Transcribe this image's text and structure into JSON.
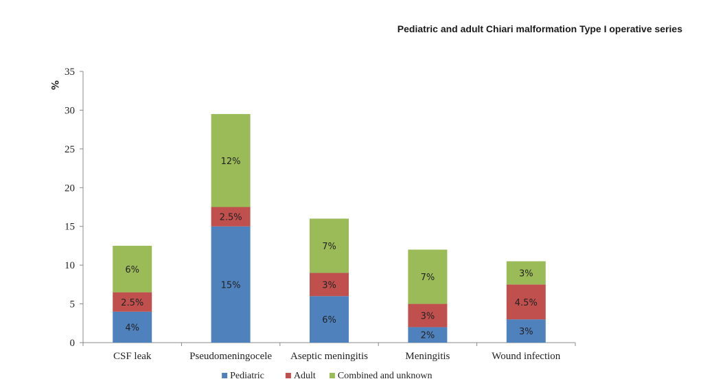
{
  "chart_data": {
    "type": "bar",
    "stacked": true,
    "title": "Pediatric and adult Chiari malformation Type I operative series",
    "ylabel": "%",
    "xlabel": "",
    "ylim": [
      0,
      35
    ],
    "yticks": [
      0,
      5,
      10,
      15,
      20,
      25,
      30,
      35
    ],
    "categories": [
      "CSF leak",
      "Pseudomeningocele",
      "Aseptic meningitis",
      "Meningitis",
      "Wound infection"
    ],
    "series": [
      {
        "name": "Pediatric",
        "color": "#4f81bd",
        "values": [
          4,
          15,
          6,
          2,
          3
        ],
        "labels": [
          "4%",
          "15%",
          "6%",
          "2%",
          "3%"
        ]
      },
      {
        "name": "Adult",
        "color": "#c0504d",
        "values": [
          2.5,
          2.5,
          3,
          3,
          4.5
        ],
        "labels": [
          "2.5%",
          "2.5%",
          "3%",
          "3%",
          "4.5%"
        ]
      },
      {
        "name": "Combined and unknown",
        "color": "#9bbb59",
        "values": [
          6,
          12,
          7,
          7,
          3
        ],
        "labels": [
          "6%",
          "12%",
          "7%",
          "7%",
          "3%"
        ]
      }
    ],
    "grid": false,
    "legend_position": "bottom"
  }
}
